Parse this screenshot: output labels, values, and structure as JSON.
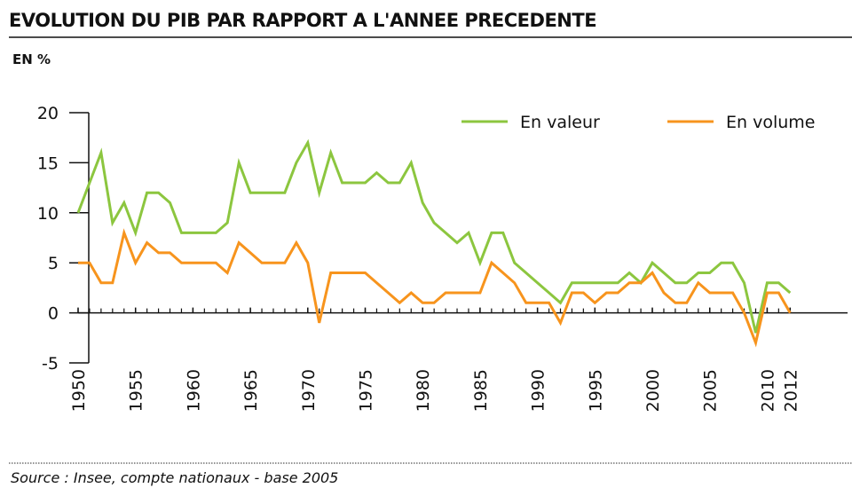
{
  "chart_data": {
    "type": "line",
    "title": "EVOLUTION DU PIB PAR RAPPORT A L'ANNEE PRECEDENTE",
    "subtitle": "EN %",
    "source": "Source : Insee, compte nationaux - base 2005",
    "x": [
      1950,
      1951,
      1952,
      1953,
      1954,
      1955,
      1956,
      1957,
      1958,
      1959,
      1960,
      1961,
      1962,
      1963,
      1964,
      1965,
      1966,
      1967,
      1968,
      1969,
      1970,
      1971,
      1972,
      1973,
      1974,
      1975,
      1976,
      1977,
      1978,
      1979,
      1980,
      1981,
      1982,
      1983,
      1984,
      1985,
      1986,
      1987,
      1988,
      1989,
      1990,
      1991,
      1992,
      1993,
      1994,
      1995,
      1996,
      1997,
      1998,
      1999,
      2000,
      2001,
      2002,
      2003,
      2004,
      2005,
      2006,
      2007,
      2008,
      2009,
      2010,
      2011,
      2012
    ],
    "series": [
      {
        "name": "En valeur",
        "color": "#8cc63f",
        "values": [
          10,
          13,
          16,
          9,
          11,
          8,
          12,
          12,
          11,
          8,
          8,
          8,
          8,
          9,
          15,
          12,
          12,
          12,
          12,
          15,
          17,
          12,
          16,
          13,
          13,
          13,
          14,
          13,
          13,
          15,
          11,
          9,
          8,
          7,
          8,
          5,
          8,
          8,
          5,
          4,
          3,
          2,
          1,
          3,
          3,
          3,
          3,
          3,
          4,
          3,
          5,
          4,
          3,
          3,
          4,
          4,
          5,
          5,
          3,
          -2,
          3,
          3,
          2
        ]
      },
      {
        "name": "En volume",
        "color": "#f7941d",
        "values": [
          5,
          5,
          3,
          3,
          8,
          5,
          7,
          6,
          6,
          5,
          5,
          5,
          5,
          4,
          7,
          6,
          5,
          5,
          5,
          7,
          5,
          -1,
          4,
          4,
          4,
          4,
          3,
          2,
          1,
          2,
          1,
          1,
          2,
          2,
          2,
          2,
          5,
          4,
          3,
          1,
          1,
          1,
          -1,
          2,
          2,
          1,
          2,
          2,
          3,
          3,
          4,
          2,
          1,
          1,
          3,
          2,
          2,
          2,
          0,
          -3,
          2,
          2,
          0
        ]
      }
    ],
    "xlim": [
      1950,
      2017
    ],
    "xticks": [
      1950,
      1955,
      1960,
      1965,
      1970,
      1975,
      1980,
      1985,
      1990,
      1995,
      2000,
      2005,
      2010,
      2012
    ],
    "ylim": [
      -5,
      20
    ],
    "yticks": [
      -5,
      0,
      5,
      10,
      15,
      20
    ],
    "legend": "top-right"
  }
}
